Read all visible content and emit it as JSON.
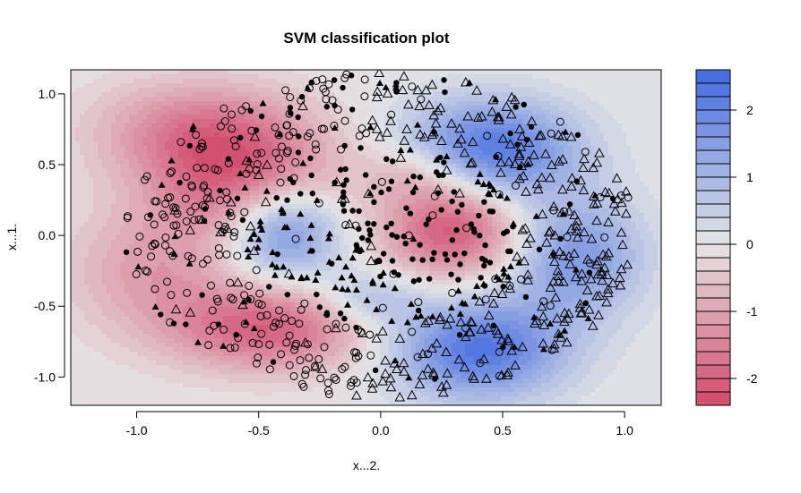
{
  "chart_data": {
    "type": "scatter",
    "subtype": "svm-decision-contour",
    "title": "SVM classification plot",
    "xlabel": "x...2.",
    "ylabel": "x...1.",
    "xlim": [
      -1.27,
      1.15
    ],
    "ylim": [
      -1.2,
      1.17
    ],
    "xticks": [
      -1.0,
      -0.5,
      0.0,
      0.5,
      1.0
    ],
    "xtick_labels": [
      "-1.0",
      "-0.5",
      "0.0",
      "0.5",
      "1.0"
    ],
    "yticks": [
      -1.0,
      -0.5,
      0.0,
      0.5,
      1.0
    ],
    "ytick_labels": [
      "-1.0",
      "-0.5",
      "0.0",
      "0.5",
      "1.0"
    ],
    "grid": false,
    "legend": "colorbar-right",
    "colorbar": {
      "range": [
        -2.4,
        2.6
      ],
      "ticks": [
        -2,
        -1,
        0,
        1,
        2
      ],
      "tick_labels": [
        "-2",
        "-1",
        "0",
        "1",
        "2"
      ],
      "levels": 25,
      "low_color": "#d2496b",
      "mid_color": "#e6e6e6",
      "high_color": "#4169e1"
    },
    "decision_field": {
      "description_of_regions": "two-class spiral-like decision surface",
      "centers": [
        {
          "x": -0.55,
          "y": 0.35,
          "weight": -2.0,
          "sx": 0.28,
          "sy": 0.3
        },
        {
          "x": -0.75,
          "y": 0.75,
          "weight": -1.4,
          "sx": 0.3,
          "sy": 0.25
        },
        {
          "x": -0.45,
          "y": -0.65,
          "weight": -2.0,
          "sx": 0.3,
          "sy": 0.22
        },
        {
          "x": -0.95,
          "y": -0.25,
          "weight": -1.0,
          "sx": 0.25,
          "sy": 0.3
        },
        {
          "x": 0.3,
          "y": 0.05,
          "weight": -2.2,
          "sx": 0.2,
          "sy": 0.25
        },
        {
          "x": 0.15,
          "y": 0.45,
          "weight": -0.8,
          "sx": 0.15,
          "sy": 0.15
        },
        {
          "x": -0.4,
          "y": 0.05,
          "weight": 2.3,
          "sx": 0.17,
          "sy": 0.25
        },
        {
          "x": 0.45,
          "y": 0.6,
          "weight": 2.3,
          "sx": 0.25,
          "sy": 0.25
        },
        {
          "x": 0.4,
          "y": -0.8,
          "weight": 2.3,
          "sx": 0.25,
          "sy": 0.25
        },
        {
          "x": 0.8,
          "y": -0.15,
          "weight": 1.6,
          "sx": 0.2,
          "sy": 0.3
        },
        {
          "x": -0.05,
          "y": -0.45,
          "weight": 1.0,
          "sx": 0.15,
          "sy": 0.15
        }
      ]
    },
    "series": [
      {
        "marker": "open-circle"
      },
      {
        "marker": "open-triangle"
      },
      {
        "marker": "filled-circle"
      },
      {
        "marker": "filled-triangle"
      }
    ],
    "points_description": "about 900 points drawn roughly uniformly inside an ellipse of half-widths 1.05 by 1.15, centered near (0, 0)"
  }
}
